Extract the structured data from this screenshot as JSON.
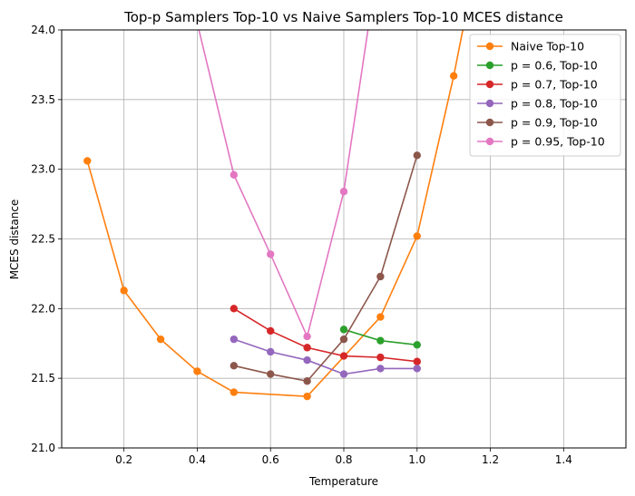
{
  "chart_data": {
    "type": "line",
    "title": "Top-p Samplers Top-10 vs Naive Samplers Top-10 MCES distance",
    "xlabel": "Temperature",
    "ylabel": "MCES distance",
    "xlim": [
      0.03,
      1.57
    ],
    "ylim": [
      21.0,
      24.0
    ],
    "xticks": [
      0.2,
      0.4,
      0.6,
      0.8,
      1.0,
      1.2,
      1.4
    ],
    "xtick_labels": [
      "0.2",
      "0.4",
      "0.6",
      "0.8",
      "1.0",
      "1.2",
      "1.4"
    ],
    "yticks": [
      21.0,
      21.5,
      22.0,
      22.5,
      23.0,
      23.5,
      24.0
    ],
    "ytick_labels": [
      "21.0",
      "21.5",
      "22.0",
      "22.5",
      "23.0",
      "23.5",
      "24.0"
    ],
    "grid": true,
    "legend_position": "top-right",
    "series": [
      {
        "name": "Naive Top-10",
        "color": "#ff7f0e",
        "x": [
          0.1,
          0.2,
          0.3,
          0.4,
          0.5,
          0.7,
          0.9,
          1.0,
          1.1,
          1.2
        ],
        "y": [
          23.06,
          22.13,
          21.78,
          21.55,
          21.4,
          21.37,
          21.94,
          22.52,
          23.67,
          25.0
        ]
      },
      {
        "name": "p = 0.6, Top-10",
        "color": "#2ca02c",
        "x": [
          0.8,
          0.9,
          1.0
        ],
        "y": [
          21.85,
          21.77,
          21.74
        ]
      },
      {
        "name": "p = 0.7, Top-10",
        "color": "#d62728",
        "x": [
          0.5,
          0.6,
          0.7,
          0.8,
          0.9,
          1.0
        ],
        "y": [
          22.0,
          21.84,
          21.72,
          21.66,
          21.65,
          21.62
        ]
      },
      {
        "name": "p = 0.8, Top-10",
        "color": "#9467bd",
        "x": [
          0.5,
          0.6,
          0.7,
          0.8,
          0.9,
          1.0
        ],
        "y": [
          21.78,
          21.69,
          21.63,
          21.53,
          21.57,
          21.57
        ]
      },
      {
        "name": "p = 0.9, Top-10",
        "color": "#8c564b",
        "x": [
          0.5,
          0.6,
          0.7,
          0.8,
          0.9,
          1.0
        ],
        "y": [
          21.59,
          21.53,
          21.48,
          21.78,
          22.23,
          23.1
        ]
      },
      {
        "name": "p = 0.95, Top-10",
        "color": "#e377c2",
        "x": [
          0.4,
          0.5,
          0.6,
          0.7,
          0.8,
          0.9
        ],
        "y": [
          24.05,
          22.96,
          22.39,
          21.8,
          22.84,
          24.6
        ]
      }
    ]
  }
}
